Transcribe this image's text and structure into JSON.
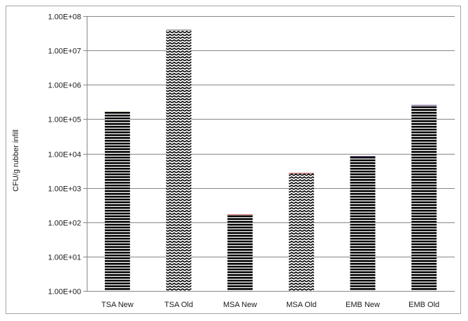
{
  "chart_data": {
    "type": "bar",
    "title": "",
    "xlabel": "",
    "ylabel": "CFU/g rubber infill",
    "yscale": "log",
    "ylim": [
      1,
      100000000
    ],
    "yticks": [
      1,
      10,
      100,
      1000,
      10000,
      100000,
      1000000,
      10000000,
      100000000
    ],
    "ytick_labels": [
      "1.00E+00",
      "1.00E+01",
      "1.00E+02",
      "1.00E+03",
      "1.00E+04",
      "1.00E+05",
      "1.00E+06",
      "1.00E+07",
      "1.00E+08"
    ],
    "grid": true,
    "legend": "none",
    "categories": [
      "TSA New",
      "TSA Old",
      "MSA New",
      "MSA Old",
      "EMB New",
      "EMB Old"
    ],
    "values": [
      170000,
      40000000,
      170,
      2700,
      8500,
      260000
    ],
    "bar_colors": [
      "#ede8d6",
      "#5a5a5a",
      "#c0504d",
      "#9b2d2d",
      "#8064a2",
      "#5b3f82"
    ]
  }
}
